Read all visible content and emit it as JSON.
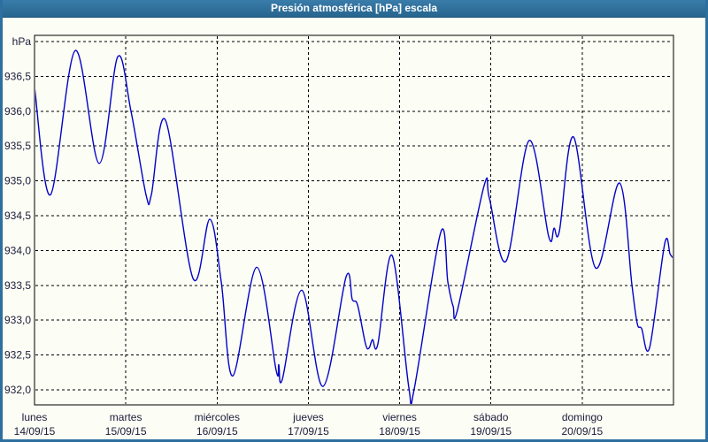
{
  "window": {
    "title": "Presión atmosférica [hPa] escala"
  },
  "colors": {
    "frame": "#2d6f9f",
    "title_text": "#ffffff",
    "background": "#fcfdf5",
    "grid": "#000000",
    "axis": "#000000",
    "label_text": "#1c1c3a",
    "line": "#0202c8"
  },
  "chart_data": {
    "type": "line",
    "title": "Presión atmosférica [hPa] escala",
    "y_unit_label": "hPa",
    "ylabel": "hPa",
    "xlabel": "",
    "grid": "dashed",
    "legend": "none",
    "ylim": [
      931.8,
      937.1
    ],
    "x_range_days": 7,
    "y_gridline_values": [
      937.0,
      936.5,
      936.0,
      935.5,
      935.0,
      934.5,
      934.0,
      933.5,
      933.0,
      932.5,
      932.0
    ],
    "y_ticks": [
      {
        "value": 936.5,
        "label": "936,5"
      },
      {
        "value": 936.0,
        "label": "936,0"
      },
      {
        "value": 935.5,
        "label": "935,5"
      },
      {
        "value": 935.0,
        "label": "935,0"
      },
      {
        "value": 934.5,
        "label": "934,5"
      },
      {
        "value": 934.0,
        "label": "934,0"
      },
      {
        "value": 933.5,
        "label": "933,5"
      },
      {
        "value": 933.0,
        "label": "933,0"
      },
      {
        "value": 932.5,
        "label": "932,5"
      },
      {
        "value": 932.0,
        "label": "932,0"
      }
    ],
    "x_days": [
      {
        "name": "lunes",
        "date": "14/09/15"
      },
      {
        "name": "martes",
        "date": "15/09/15"
      },
      {
        "name": "miércoles",
        "date": "16/09/15"
      },
      {
        "name": "jueves",
        "date": "17/09/15"
      },
      {
        "name": "viernes",
        "date": "18/09/15"
      },
      {
        "name": "sábado",
        "date": "19/09/15"
      },
      {
        "name": "domingo",
        "date": "20/09/15"
      }
    ],
    "series": [
      {
        "name": "Presión atmosférica",
        "unit": "hPa",
        "color": "#0202c8",
        "points": [
          [
            0.0,
            936.35
          ],
          [
            0.175,
            934.8
          ],
          [
            0.446,
            936.87
          ],
          [
            0.708,
            935.25
          ],
          [
            0.911,
            936.78
          ],
          [
            1.057,
            936.0
          ],
          [
            1.222,
            934.8
          ],
          [
            1.28,
            934.8
          ],
          [
            1.435,
            935.87
          ],
          [
            1.736,
            933.6
          ],
          [
            1.92,
            934.45
          ],
          [
            2.046,
            933.55
          ],
          [
            2.172,
            932.2
          ],
          [
            2.434,
            933.76
          ],
          [
            2.647,
            932.28
          ],
          [
            2.676,
            932.36
          ],
          [
            2.715,
            932.15
          ],
          [
            2.928,
            933.43
          ],
          [
            3.161,
            932.05
          ],
          [
            3.413,
            933.62
          ],
          [
            3.481,
            933.3
          ],
          [
            3.539,
            933.22
          ],
          [
            3.626,
            932.66
          ],
          [
            3.665,
            932.6
          ],
          [
            3.703,
            932.72
          ],
          [
            3.762,
            932.66
          ],
          [
            3.917,
            933.93
          ],
          [
            4.101,
            932.03
          ],
          [
            4.159,
            932.01
          ],
          [
            4.45,
            934.26
          ],
          [
            4.528,
            933.55
          ],
          [
            4.586,
            933.2
          ],
          [
            4.634,
            933.15
          ],
          [
            4.925,
            934.93
          ],
          [
            4.983,
            934.75
          ],
          [
            5.168,
            933.85
          ],
          [
            5.42,
            935.58
          ],
          [
            5.633,
            934.2
          ],
          [
            5.691,
            934.32
          ],
          [
            5.75,
            934.28
          ],
          [
            5.905,
            935.63
          ],
          [
            6.147,
            933.75
          ],
          [
            6.409,
            934.97
          ],
          [
            6.545,
            933.5
          ],
          [
            6.603,
            932.95
          ],
          [
            6.651,
            932.88
          ],
          [
            6.739,
            932.61
          ],
          [
            6.904,
            934.1
          ],
          [
            6.962,
            933.95
          ],
          [
            6.991,
            933.9
          ]
        ]
      }
    ]
  }
}
